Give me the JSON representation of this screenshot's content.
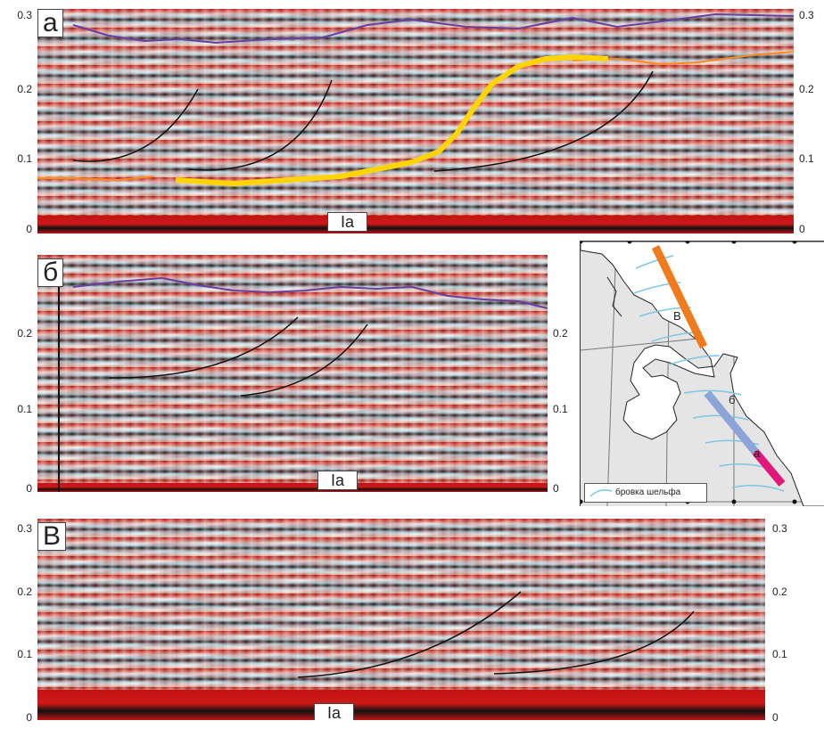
{
  "panels": {
    "a": {
      "label": "а",
      "unit_label": "Ia",
      "left_ticks": [
        "0.3",
        "0.2",
        "0.1",
        "0"
      ],
      "right_ticks": [
        "0.3",
        "0.2",
        "0.1",
        "0"
      ]
    },
    "b": {
      "label": "б",
      "unit_label": "Ia",
      "left_ticks": [
        "0.2",
        "0.1",
        "0"
      ],
      "right_ticks": [
        "0.2",
        "0.1",
        "0"
      ]
    },
    "v": {
      "label": "В",
      "unit_label": "Ia",
      "left_ticks": [
        "0.3",
        "0.2",
        "0.1",
        "0"
      ],
      "right_ticks": [
        "0.3",
        "0.2",
        "0.1",
        "0"
      ]
    }
  },
  "map": {
    "profile_labels": [
      "В",
      "б",
      "а"
    ],
    "legend_text": "бровка шельфа",
    "colors": {
      "profile_v": "#f07a1c",
      "profile_b": "#8da4d8",
      "profile_a": "#e0187a",
      "shelf_edge": "#7cc6e6",
      "land": "#ffffff",
      "sea": "#e5e5e5"
    }
  },
  "colors": {
    "horizon_yellow": "#ffd400",
    "seafloor_purple": "#6a3fa0",
    "orange_horizon": "#ff8a1c",
    "clinoform_line": "#111111"
  }
}
